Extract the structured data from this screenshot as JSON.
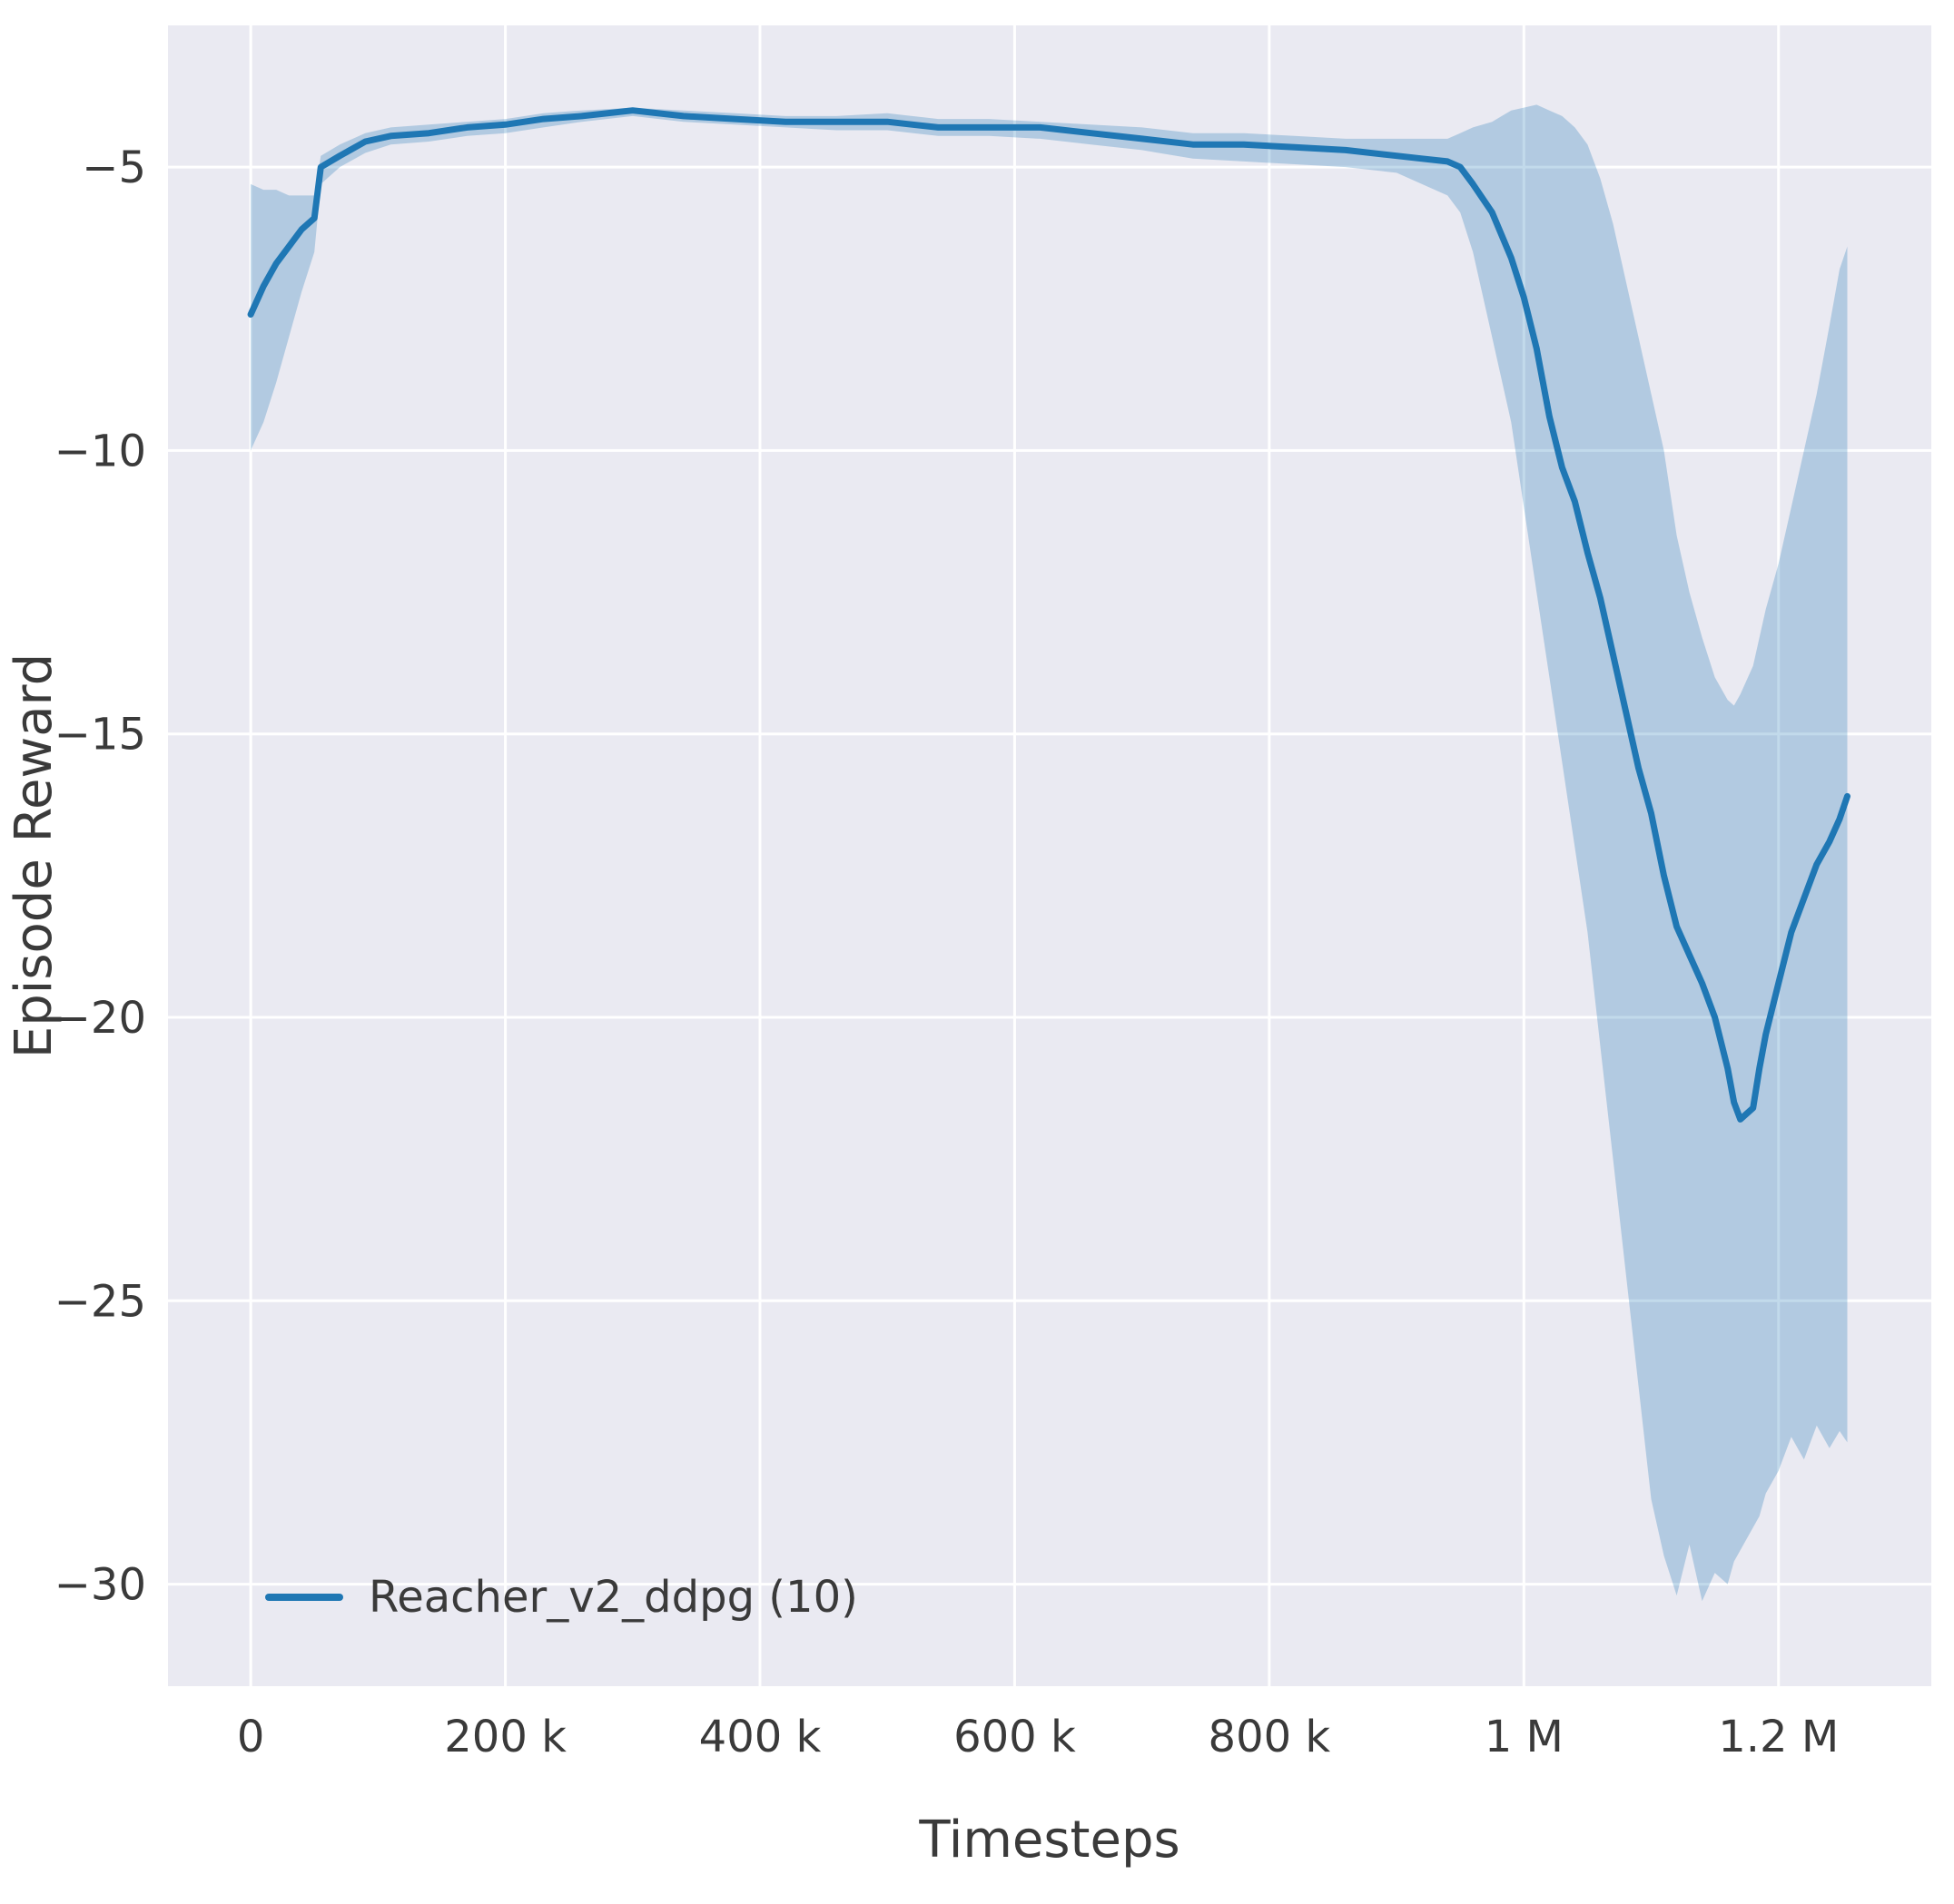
{
  "chart_data": {
    "type": "line",
    "title": "",
    "xlabel": "Timesteps",
    "ylabel": "Episode Reward",
    "grid": true,
    "legend_position": "lower left",
    "xlim": [
      -65000,
      1320000
    ],
    "ylim": [
      -31.8,
      -2.5
    ],
    "xticks": {
      "values": [
        0,
        200000,
        400000,
        600000,
        800000,
        1000000,
        1200000
      ],
      "labels": [
        "0",
        "200 k",
        "400 k",
        "600 k",
        "800 k",
        "1 M",
        "1.2 M"
      ]
    },
    "yticks": {
      "values": [
        -5,
        -10,
        -15,
        -20,
        -25,
        -30
      ],
      "labels": [
        "−5",
        "−10",
        "−15",
        "−20",
        "−25",
        "−30"
      ]
    },
    "colors": {
      "line": "#1f77b4",
      "band": "#1f77b4",
      "band_opacity": 0.27,
      "plot_bg": "#eaeaf2",
      "grid": "#ffffff",
      "text": "#3a3a3a",
      "figure_bg": "#ffffff"
    },
    "series": [
      {
        "name": "Reacher_v2_ddpg (10)",
        "color": "#1f77b4",
        "x": [
          0,
          10000,
          20000,
          30000,
          40000,
          50000,
          55000,
          70000,
          90000,
          110000,
          140000,
          170000,
          200000,
          230000,
          260000,
          300000,
          340000,
          380000,
          420000,
          460000,
          500000,
          540000,
          580000,
          620000,
          660000,
          700000,
          740000,
          780000,
          820000,
          860000,
          900000,
          920000,
          940000,
          950000,
          960000,
          975000,
          990000,
          1000000,
          1010000,
          1020000,
          1030000,
          1040000,
          1050000,
          1060000,
          1070000,
          1080000,
          1090000,
          1100000,
          1110000,
          1120000,
          1130000,
          1140000,
          1150000,
          1160000,
          1165000,
          1170000,
          1180000,
          1185000,
          1190000,
          1200000,
          1210000,
          1220000,
          1230000,
          1240000,
          1248000,
          1254000
        ],
        "mean": [
          -7.6,
          -7.1,
          -6.7,
          -6.4,
          -6.1,
          -5.9,
          -5.0,
          -4.8,
          -4.55,
          -4.45,
          -4.4,
          -4.3,
          -4.25,
          -4.15,
          -4.1,
          -4.0,
          -4.1,
          -4.15,
          -4.2,
          -4.2,
          -4.2,
          -4.3,
          -4.3,
          -4.3,
          -4.4,
          -4.5,
          -4.6,
          -4.6,
          -4.65,
          -4.7,
          -4.8,
          -4.85,
          -4.9,
          -5.0,
          -5.3,
          -5.8,
          -6.6,
          -7.3,
          -8.2,
          -9.4,
          -10.3,
          -10.9,
          -11.8,
          -12.6,
          -13.6,
          -14.6,
          -15.6,
          -16.4,
          -17.5,
          -18.4,
          -18.9,
          -19.4,
          -20.0,
          -20.9,
          -21.5,
          -21.8,
          -21.6,
          -20.9,
          -20.3,
          -19.4,
          -18.5,
          -17.9,
          -17.3,
          -16.9,
          -16.5,
          -16.1
        ],
        "lower": [
          -10.0,
          -9.5,
          -8.8,
          -8.0,
          -7.2,
          -6.5,
          -5.3,
          -5.0,
          -4.75,
          -4.6,
          -4.55,
          -4.45,
          -4.4,
          -4.3,
          -4.2,
          -4.1,
          -4.2,
          -4.25,
          -4.3,
          -4.35,
          -4.35,
          -4.45,
          -4.45,
          -4.5,
          -4.6,
          -4.7,
          -4.85,
          -4.9,
          -4.95,
          -5.0,
          -5.1,
          -5.3,
          -5.5,
          -5.8,
          -6.5,
          -8.0,
          -9.5,
          -11.0,
          -12.5,
          -14.0,
          -15.5,
          -17.0,
          -18.5,
          -20.5,
          -22.5,
          -24.5,
          -26.5,
          -28.5,
          -29.5,
          -30.2,
          -29.3,
          -30.3,
          -29.8,
          -30.0,
          -29.6,
          -29.4,
          -29.0,
          -28.8,
          -28.4,
          -28.0,
          -27.4,
          -27.8,
          -27.2,
          -27.6,
          -27.3,
          -27.5
        ],
        "upper": [
          -5.3,
          -5.4,
          -5.4,
          -5.5,
          -5.5,
          -5.5,
          -4.8,
          -4.6,
          -4.4,
          -4.3,
          -4.25,
          -4.2,
          -4.15,
          -4.05,
          -4.0,
          -3.95,
          -4.0,
          -4.05,
          -4.1,
          -4.1,
          -4.05,
          -4.15,
          -4.15,
          -4.2,
          -4.25,
          -4.3,
          -4.4,
          -4.4,
          -4.45,
          -4.5,
          -4.5,
          -4.5,
          -4.5,
          -4.4,
          -4.3,
          -4.2,
          -4.0,
          -3.95,
          -3.9,
          -4.0,
          -4.1,
          -4.3,
          -4.6,
          -5.2,
          -6.0,
          -7.0,
          -8.0,
          -9.0,
          -10.0,
          -11.5,
          -12.5,
          -13.3,
          -14.0,
          -14.4,
          -14.5,
          -14.3,
          -13.8,
          -13.3,
          -12.8,
          -12.0,
          -11.0,
          -10.0,
          -9.0,
          -7.8,
          -6.8,
          -6.4
        ]
      }
    ]
  }
}
